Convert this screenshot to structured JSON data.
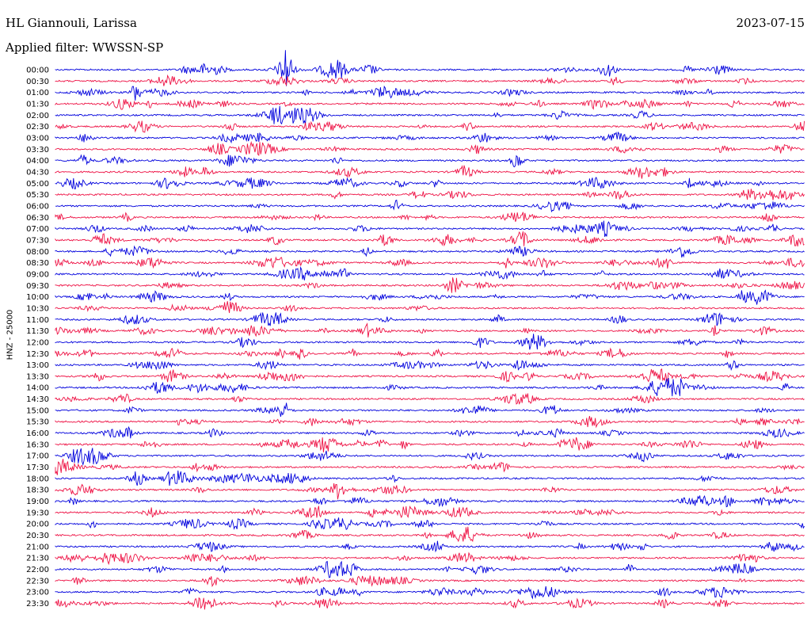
{
  "header": {
    "station": "HL Giannouli, Larissa",
    "date": "2023-07-15",
    "filter": "Applied filter: WWSSN-SP",
    "channel_label": "HNZ - 25000"
  },
  "colors": {
    "blue": "#0000dd",
    "red": "#ee1144"
  },
  "chart_data": {
    "type": "line",
    "title": "",
    "ylabel": "HNZ - 25000",
    "xlabel": "",
    "grid": false,
    "legend": "none",
    "rows": [
      {
        "label": "00:00",
        "color": "blue"
      },
      {
        "label": "00:30",
        "color": "red"
      },
      {
        "label": "01:00",
        "color": "blue"
      },
      {
        "label": "01:30",
        "color": "red"
      },
      {
        "label": "02:00",
        "color": "blue"
      },
      {
        "label": "02:30",
        "color": "red"
      },
      {
        "label": "03:00",
        "color": "blue"
      },
      {
        "label": "03:30",
        "color": "red"
      },
      {
        "label": "04:00",
        "color": "blue"
      },
      {
        "label": "04:30",
        "color": "red"
      },
      {
        "label": "05:00",
        "color": "blue"
      },
      {
        "label": "05:30",
        "color": "red"
      },
      {
        "label": "06:00",
        "color": "blue"
      },
      {
        "label": "06:30",
        "color": "red"
      },
      {
        "label": "07:00",
        "color": "blue"
      },
      {
        "label": "07:30",
        "color": "red"
      },
      {
        "label": "08:00",
        "color": "blue"
      },
      {
        "label": "08:30",
        "color": "red"
      },
      {
        "label": "09:00",
        "color": "blue"
      },
      {
        "label": "09:30",
        "color": "red"
      },
      {
        "label": "10:00",
        "color": "blue"
      },
      {
        "label": "10:30",
        "color": "red"
      },
      {
        "label": "11:00",
        "color": "blue"
      },
      {
        "label": "11:30",
        "color": "red"
      },
      {
        "label": "12:00",
        "color": "blue"
      },
      {
        "label": "12:30",
        "color": "red"
      },
      {
        "label": "13:00",
        "color": "blue"
      },
      {
        "label": "13:30",
        "color": "red"
      },
      {
        "label": "14:00",
        "color": "blue"
      },
      {
        "label": "14:30",
        "color": "red"
      },
      {
        "label": "15:00",
        "color": "blue"
      },
      {
        "label": "15:30",
        "color": "red"
      },
      {
        "label": "16:00",
        "color": "blue"
      },
      {
        "label": "16:30",
        "color": "red"
      },
      {
        "label": "17:00",
        "color": "blue"
      },
      {
        "label": "17:30",
        "color": "red"
      },
      {
        "label": "18:00",
        "color": "blue"
      },
      {
        "label": "18:30",
        "color": "red"
      },
      {
        "label": "19:00",
        "color": "blue"
      },
      {
        "label": "19:30",
        "color": "red"
      },
      {
        "label": "20:00",
        "color": "blue"
      },
      {
        "label": "20:30",
        "color": "red"
      },
      {
        "label": "21:00",
        "color": "blue"
      },
      {
        "label": "21:30",
        "color": "red"
      },
      {
        "label": "22:00",
        "color": "blue"
      },
      {
        "label": "22:30",
        "color": "red"
      },
      {
        "label": "23:00",
        "color": "blue"
      },
      {
        "label": "23:30",
        "color": "red"
      }
    ]
  }
}
